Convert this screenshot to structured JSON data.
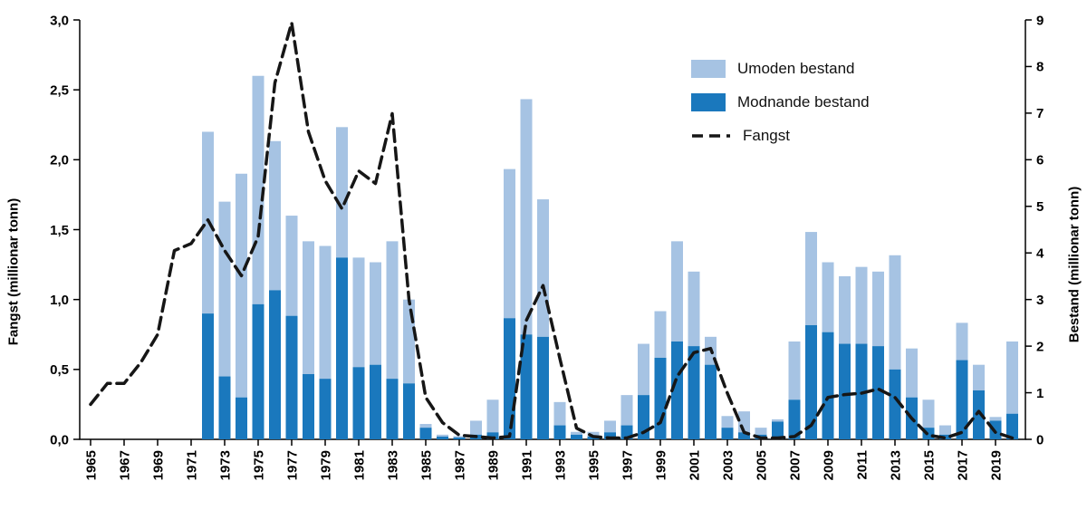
{
  "chart_data": {
    "type": "bar",
    "subtype": "stacked-bars-with-dashed-line",
    "title": "",
    "colors": {
      "umoden": "#a6c3e3",
      "modnande": "#1a78bd",
      "line": "#161616"
    },
    "left_axis": {
      "label": "Fangst (millionar tonn)",
      "min": 0,
      "max": 3,
      "ticks": [
        "0,0",
        "0,5",
        "1,0",
        "1,5",
        "2,0",
        "2,5",
        "3,0"
      ]
    },
    "right_axis": {
      "label": "Bestand (millionar tonn)",
      "min": 0,
      "max": 9,
      "ticks": [
        "0",
        "1",
        "2",
        "3",
        "4",
        "5",
        "6",
        "7",
        "8",
        "9"
      ]
    },
    "x_axis": {
      "tick_years": [
        "1965",
        "1967",
        "1969",
        "1971",
        "1973",
        "1975",
        "1977",
        "1979",
        "1981",
        "1983",
        "1985",
        "1987",
        "1989",
        "1991",
        "1993",
        "1995",
        "1997",
        "1999",
        "2001",
        "2003",
        "2005",
        "2007",
        "2009",
        "2011",
        "2013",
        "2015",
        "2017",
        "2019"
      ]
    },
    "legend": [
      {
        "label": "Umoden bestand",
        "swatch": "umoden"
      },
      {
        "label": "Modnande bestand",
        "swatch": "modnande"
      },
      {
        "label": "Fangst",
        "swatch": "dashed-line"
      }
    ],
    "bars": {
      "axis": "right",
      "years": [
        1972,
        1973,
        1974,
        1975,
        1976,
        1977,
        1978,
        1979,
        1980,
        1981,
        1982,
        1983,
        1984,
        1985,
        1986,
        1987,
        1988,
        1989,
        1990,
        1991,
        1992,
        1993,
        1994,
        1995,
        1996,
        1997,
        1998,
        1999,
        2000,
        2001,
        2002,
        2003,
        2004,
        2005,
        2006,
        2007,
        2008,
        2009,
        2010,
        2011,
        2012,
        2013,
        2014,
        2015,
        2016,
        2017,
        2018,
        2019,
        2020
      ],
      "modnande": [
        2.7,
        1.35,
        0.9,
        2.9,
        3.2,
        2.65,
        1.4,
        1.3,
        3.9,
        1.55,
        1.6,
        1.3,
        1.2,
        0.25,
        0.06,
        0.04,
        0.1,
        0.15,
        2.6,
        2.25,
        2.2,
        0.3,
        0.1,
        0.06,
        0.15,
        0.3,
        0.95,
        1.75,
        2.1,
        2.0,
        1.6,
        0.25,
        0.15,
        0.1,
        0.38,
        0.85,
        2.45,
        2.3,
        2.05,
        2.05,
        2.0,
        1.5,
        0.9,
        0.25,
        0.1,
        1.7,
        1.05,
        0.4,
        0.55
      ],
      "umoden": [
        3.9,
        3.75,
        4.8,
        4.9,
        3.2,
        2.15,
        2.85,
        2.85,
        2.8,
        2.35,
        2.2,
        2.95,
        1.8,
        0.08,
        0.04,
        0.03,
        0.3,
        0.7,
        3.2,
        5.05,
        2.95,
        0.5,
        0.06,
        0.1,
        0.25,
        0.65,
        1.1,
        1.0,
        2.15,
        1.6,
        0.6,
        0.25,
        0.45,
        0.15,
        0.05,
        1.25,
        2.0,
        1.5,
        1.45,
        1.65,
        1.6,
        2.45,
        1.05,
        0.6,
        0.2,
        0.8,
        0.55,
        0.08,
        1.55
      ]
    },
    "line": {
      "name": "Fangst",
      "axis": "left",
      "years": [
        1965,
        1966,
        1967,
        1968,
        1969,
        1970,
        1971,
        1972,
        1973,
        1974,
        1975,
        1976,
        1977,
        1978,
        1979,
        1980,
        1981,
        1982,
        1983,
        1984,
        1985,
        1986,
        1987,
        1988,
        1989,
        1990,
        1991,
        1992,
        1993,
        1994,
        1995,
        1996,
        1997,
        1998,
        1999,
        2000,
        2001,
        2002,
        2003,
        2004,
        2005,
        2006,
        2007,
        2008,
        2009,
        2010,
        2011,
        2012,
        2013,
        2014,
        2015,
        2016,
        2017,
        2018,
        2019,
        2020
      ],
      "values": [
        0.25,
        0.4,
        0.4,
        0.55,
        0.75,
        1.35,
        1.4,
        1.57,
        1.35,
        1.17,
        1.45,
        2.55,
        2.98,
        2.2,
        1.85,
        1.65,
        1.92,
        1.83,
        2.33,
        1.0,
        0.3,
        0.12,
        0.03,
        0.02,
        0.01,
        0.02,
        0.85,
        1.1,
        0.58,
        0.08,
        0.02,
        0.01,
        0.01,
        0.05,
        0.12,
        0.45,
        0.62,
        0.65,
        0.33,
        0.05,
        0.01,
        0.01,
        0.02,
        0.1,
        0.3,
        0.32,
        0.33,
        0.36,
        0.3,
        0.15,
        0.03,
        0.01,
        0.05,
        0.2,
        0.05,
        0.01
      ]
    }
  }
}
